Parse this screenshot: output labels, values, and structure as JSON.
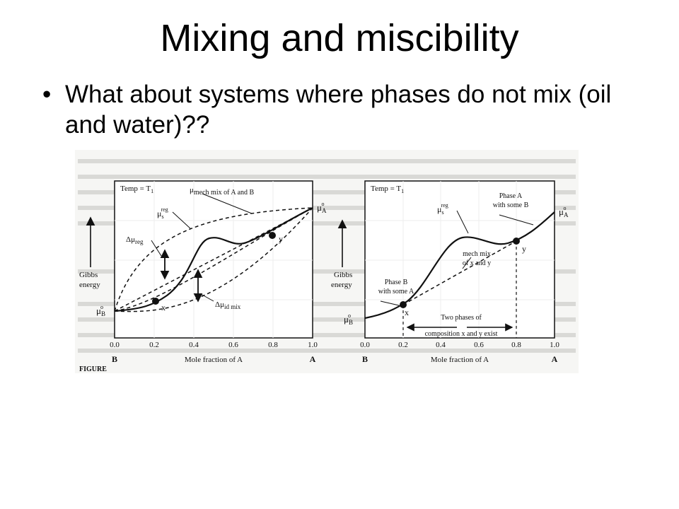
{
  "slide": {
    "title": "Mixing and miscibility",
    "bullet": "What about systems where phases do not mix (oil and water)??"
  },
  "figure_left": {
    "temp_label": "Temp = T",
    "temp_sub": "1",
    "mu_A": "μ",
    "mu_A_sup": "o",
    "mu_A_sub": "A",
    "mu_B": "μ",
    "mu_B_sup": "o",
    "mu_B_sub": "B",
    "mech_mix_label": "mech mix of A and B",
    "mu_s": "μ",
    "mu_s_sub": "s",
    "mu_s_sup": "reg",
    "dmu_reg": "Δμ",
    "dmu_reg_sub": "reg",
    "dmu_id": "Δμ",
    "dmu_id_sub": "id mix",
    "point_x": "x",
    "point_y": "y",
    "ylabel_1": "Gibbs",
    "ylabel_2": "energy",
    "xlabel": "Mole fraction of A",
    "end_B": "B",
    "end_A": "A",
    "ticks": [
      "0.0",
      "0.2",
      "0.4",
      "0.6",
      "0.8",
      "1.0"
    ],
    "caption": "FIGURE"
  },
  "figure_right": {
    "temp_label": "Temp = T",
    "temp_sub": "1",
    "mu_A": "μ",
    "mu_A_sup": "o",
    "mu_A_sub": "A",
    "mu_B": "μ",
    "mu_B_sup": "o",
    "mu_B_sub": "B",
    "mu_s": "μ",
    "mu_s_sub": "s",
    "mu_s_sup": "reg",
    "phaseA_1": "Phase A",
    "phaseA_2": "with some B",
    "mech_1": "mech mix",
    "mech_2": "of x and y",
    "phaseB_1": "Phase B",
    "phaseB_2": "with some A",
    "two_1": "Two phases of",
    "two_2": "composition x and y exist",
    "point_x": "x",
    "point_y": "y",
    "ylabel_1": "Gibbs",
    "ylabel_2": "energy",
    "xlabel": "Mole fraction of A",
    "end_B": "B",
    "end_A": "A",
    "ticks": [
      "0.0",
      "0.2",
      "0.4",
      "0.6",
      "0.8",
      "1.0"
    ]
  }
}
